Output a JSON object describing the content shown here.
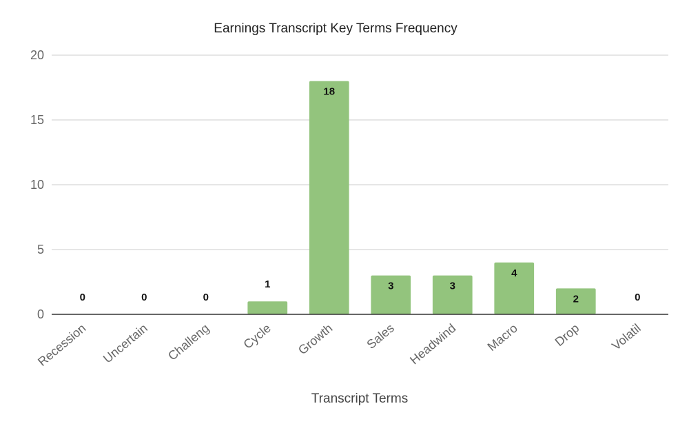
{
  "chart_data": {
    "type": "bar",
    "title": "Earnings Transcript Key Terms Frequency",
    "xlabel": "Transcript Terms",
    "ylabel": "",
    "categories": [
      "Recession",
      "Uncertain",
      "Challeng",
      "Cycle",
      "Growth",
      "Sales",
      "Headwind",
      "Macro",
      "Drop",
      "Volatil"
    ],
    "values": [
      0,
      0,
      0,
      1,
      18,
      3,
      3,
      4,
      2,
      0
    ],
    "ylim": [
      0,
      20
    ],
    "yticks": [
      0,
      5,
      10,
      15,
      20
    ],
    "grid": true,
    "legend": "none",
    "data_labels": true,
    "colors": {
      "bar": "#93c47d",
      "grid": "#cccccc",
      "baseline": "#333333"
    }
  }
}
